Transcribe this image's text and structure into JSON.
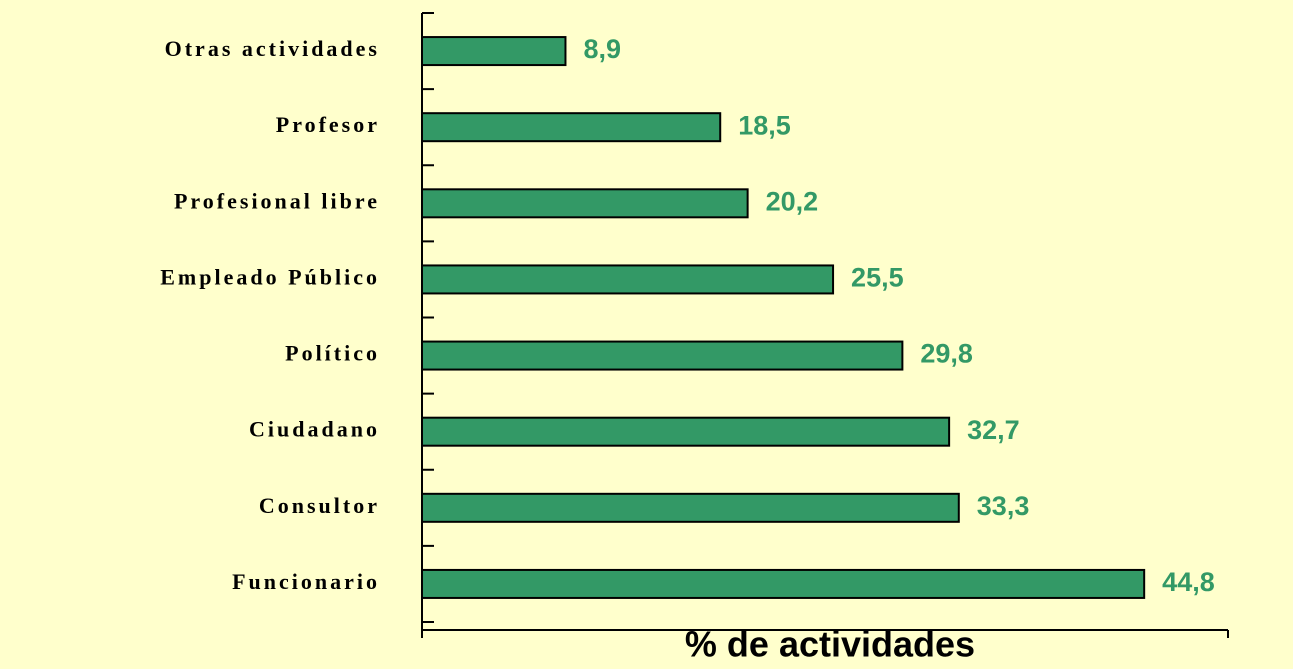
{
  "chart_data": {
    "type": "hbar",
    "categories": [
      "Otras actividades",
      "Profesor",
      "Profesional libre",
      "Empleado Público",
      "Político",
      "Ciudadano",
      "Consultor",
      "Funcionario"
    ],
    "values": [
      8.9,
      18.5,
      20.2,
      25.5,
      29.8,
      32.7,
      33.3,
      44.8
    ],
    "value_labels": [
      "8,9",
      "18,5",
      "20,2",
      "25,5",
      "29,8",
      "32,7",
      "33,3",
      "44,8"
    ],
    "color": "#339966",
    "xlabel": "% de actividades",
    "xlim": [
      0,
      50
    ]
  }
}
